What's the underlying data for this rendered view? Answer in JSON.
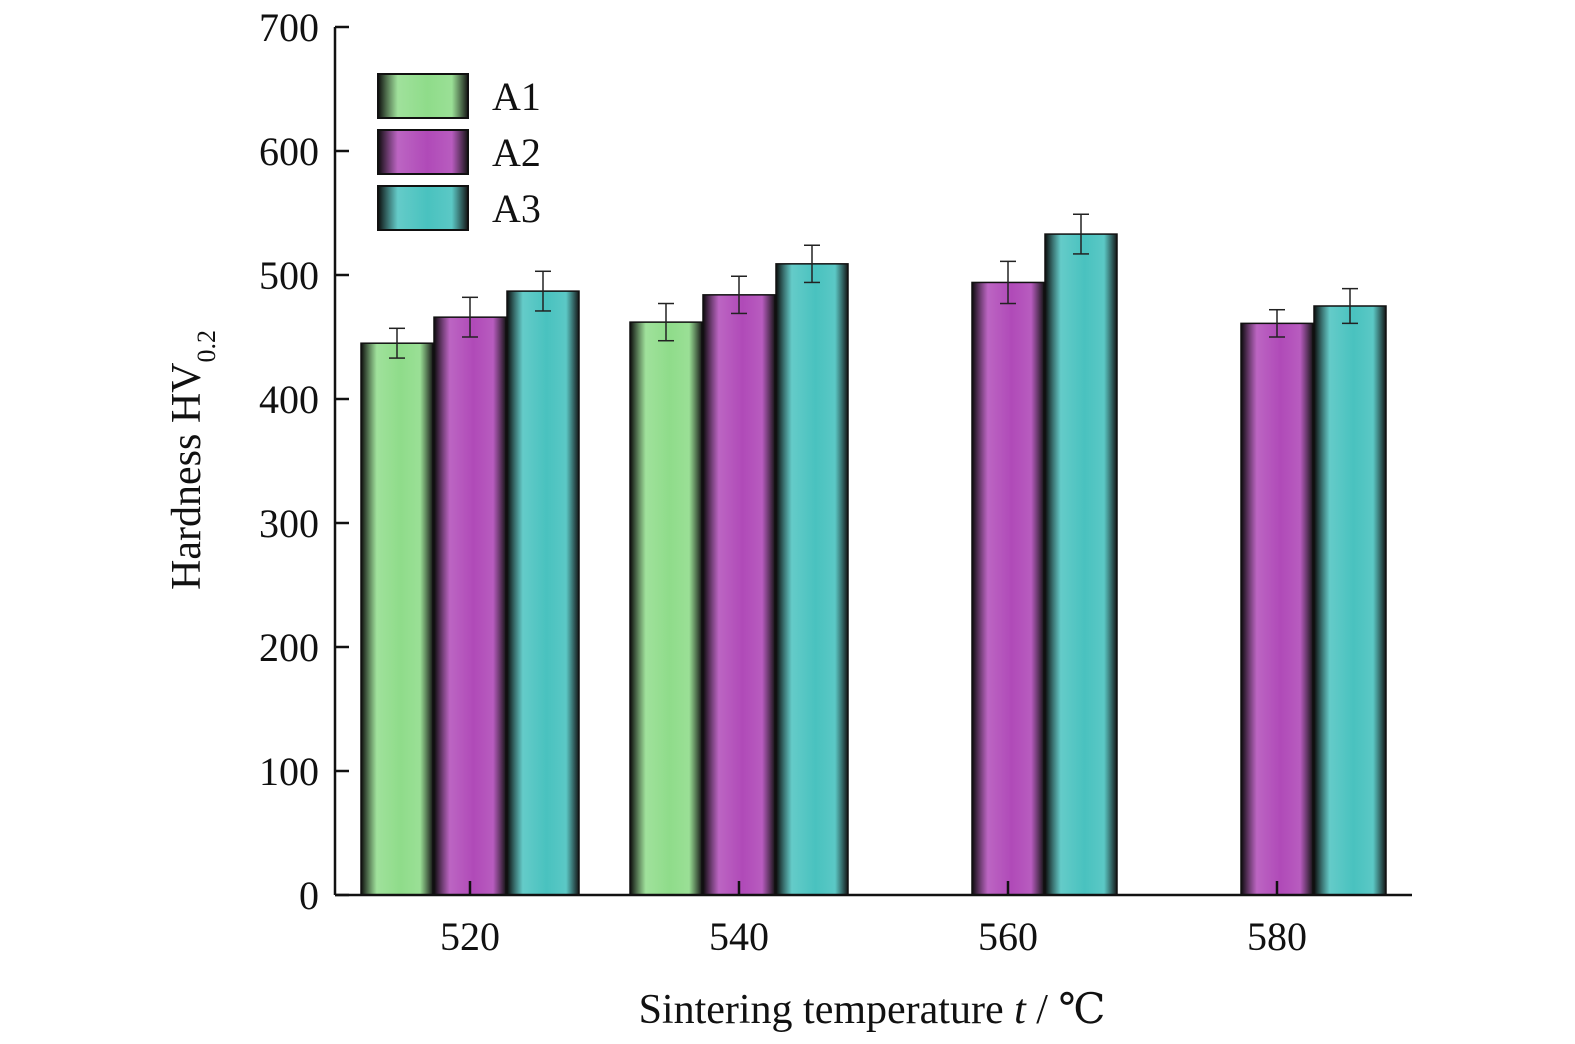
{
  "chart_data": {
    "type": "bar",
    "title": "",
    "xlabel": {
      "prefix": "Sintering temperature ",
      "var": "t",
      "suffix": " / ℃"
    },
    "ylabel": {
      "main": "Hardness HV",
      "sub": "0.2"
    },
    "categories": [
      "520",
      "540",
      "560",
      "580"
    ],
    "ylim": [
      0,
      700
    ],
    "yticks": [
      "0",
      "100",
      "200",
      "300",
      "400",
      "500",
      "600",
      "700"
    ],
    "legend_position": "top-left",
    "series": [
      {
        "name": "A1",
        "color": "#8fdc8a",
        "values": [
          445,
          462,
          null,
          null
        ],
        "errors": [
          12,
          15,
          null,
          null
        ]
      },
      {
        "name": "A2",
        "color": "#b04ab8",
        "values": [
          466,
          484,
          494,
          461
        ],
        "errors": [
          16,
          15,
          17,
          11
        ]
      },
      {
        "name": "A3",
        "color": "#49c2bf",
        "values": [
          487,
          509,
          533,
          475
        ],
        "errors": [
          16,
          15,
          16,
          14
        ]
      }
    ]
  }
}
